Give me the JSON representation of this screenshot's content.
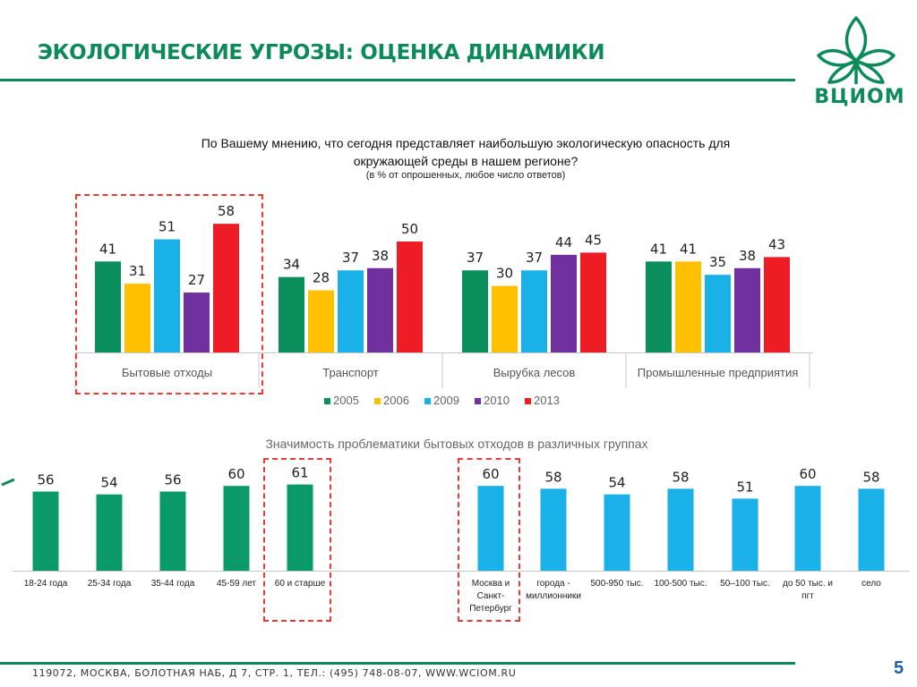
{
  "slide": {
    "title": "ЭКОЛОГИЧЕСКИЕ УГРОЗЫ: ОЦЕНКА ДИНАМИКИ",
    "logo_text": "ВЦИОМ",
    "question_line1": "По Вашему мнению, что сегодня представляет  наибольшую экологическую опасность для",
    "question_line2": "окружающей среды в нашем регионе?",
    "question_note": "(в % от опрошенных, любое число ответов)",
    "subchart_title": "Значимость проблематики бытовых отходов в различных группах",
    "footer": "119072, МОСКВА, БОЛОТНАЯ НАБ, Д 7, СТР. 1, ТЕЛ.: (495) 748-08-07, WWW.WCIOM.RU",
    "page_number": "5",
    "colors": {
      "brand_green": "#0c8a5a",
      "highlight_red": "#e63b3b",
      "page_number_blue": "#1f5fa8"
    }
  },
  "chart_data": [
    {
      "type": "bar",
      "categories": [
        "Бытовые отходы",
        "Транспорт",
        "Вырубка лесов",
        "Промышленные предприятия"
      ],
      "series": [
        {
          "name": "2005",
          "color": "#0a8f5c",
          "values": [
            41,
            34,
            37,
            41
          ]
        },
        {
          "name": "2006",
          "color": "#ffc000",
          "values": [
            31,
            28,
            30,
            41
          ]
        },
        {
          "name": "2009",
          "color": "#1ab0e8",
          "values": [
            51,
            37,
            37,
            35
          ]
        },
        {
          "name": "2010",
          "color": "#7030a0",
          "values": [
            27,
            38,
            44,
            38
          ]
        },
        {
          "name": "2013",
          "color": "#ee1c25",
          "values": [
            58,
            50,
            45,
            43
          ]
        }
      ],
      "legend_position": "bottom",
      "highlighted_category": "Бытовые отходы"
    },
    {
      "type": "bar",
      "categories": [
        "18-24 года",
        "25-34 года",
        "35-44 года",
        "45-59 лет",
        "60 и старше",
        "",
        "Москва и Санкт-Петербург",
        "города - миллионники",
        "500-950 тыс.",
        "100-500 тыс.",
        "50–100 тыс.",
        "до 50 тыс. и пгт",
        "село"
      ],
      "label_lines": [
        [
          "18-24 года"
        ],
        [
          "25-34 года"
        ],
        [
          "35-44 года"
        ],
        [
          "45-59 лет"
        ],
        [
          "60 и старше"
        ],
        [],
        [
          "Москва и",
          "Санкт-",
          "Петербург"
        ],
        [
          "города -",
          "миллионники"
        ],
        [
          "500-950 тыс."
        ],
        [
          "100-500 тыс."
        ],
        [
          "50–100 тыс."
        ],
        [
          "до 50 тыс. и",
          "пгт"
        ],
        [
          "село"
        ]
      ],
      "values": [
        56,
        54,
        56,
        60,
        61,
        null,
        60,
        58,
        54,
        58,
        51,
        60,
        58
      ],
      "bar_colors": [
        "#0a9a6a",
        "#0a9a6a",
        "#0a9a6a",
        "#0a9a6a",
        "#0a9a6a",
        null,
        "#1ab0e8",
        "#1ab0e8",
        "#1ab0e8",
        "#1ab0e8",
        "#1ab0e8",
        "#1ab0e8",
        "#1ab0e8"
      ],
      "highlighted_categories": [
        "60 и старше",
        "Москва и Санкт-Петербург"
      ]
    }
  ]
}
